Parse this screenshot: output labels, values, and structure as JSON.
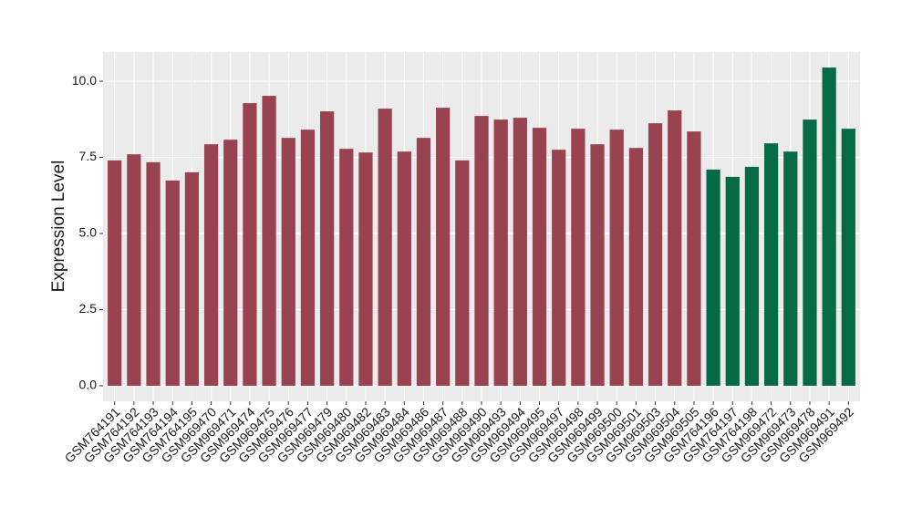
{
  "chart_data": {
    "type": "bar",
    "y_label": "Expression Level",
    "categories": [
      "GSM764191",
      "GSM764192",
      "GSM764193",
      "GSM764194",
      "GSM764195",
      "GSM969470",
      "GSM969471",
      "GSM969474",
      "GSM969475",
      "GSM969476",
      "GSM969477",
      "GSM969479",
      "GSM969480",
      "GSM969482",
      "GSM969483",
      "GSM969484",
      "GSM969486",
      "GSM969487",
      "GSM969488",
      "GSM969490",
      "GSM969493",
      "GSM969494",
      "GSM969495",
      "GSM969497",
      "GSM969498",
      "GSM969499",
      "GSM969500",
      "GSM969501",
      "GSM969503",
      "GSM969504",
      "GSM969505",
      "GSM764196",
      "GSM764197",
      "GSM764198",
      "GSM969472",
      "GSM969473",
      "GSM969478",
      "GSM969491",
      "GSM969492"
    ],
    "values": [
      7.4,
      7.6,
      7.34,
      6.74,
      7.01,
      7.93,
      8.08,
      9.28,
      9.52,
      8.14,
      8.41,
      9.01,
      7.78,
      7.66,
      9.1,
      7.69,
      8.14,
      9.13,
      7.4,
      8.86,
      8.74,
      8.8,
      8.47,
      7.75,
      8.44,
      7.93,
      8.41,
      7.81,
      8.62,
      9.04,
      8.35,
      7.1,
      6.86,
      7.19,
      7.96,
      7.69,
      8.74,
      10.45,
      8.44
    ],
    "colors": [
      "#9a4350",
      "#9a4350",
      "#9a4350",
      "#9a4350",
      "#9a4350",
      "#9a4350",
      "#9a4350",
      "#9a4350",
      "#9a4350",
      "#9a4350",
      "#9a4350",
      "#9a4350",
      "#9a4350",
      "#9a4350",
      "#9a4350",
      "#9a4350",
      "#9a4350",
      "#9a4350",
      "#9a4350",
      "#9a4350",
      "#9a4350",
      "#9a4350",
      "#9a4350",
      "#9a4350",
      "#9a4350",
      "#9a4350",
      "#9a4350",
      "#9a4350",
      "#9a4350",
      "#9a4350",
      "#9a4350",
      "#076a47",
      "#076a47",
      "#076a47",
      "#076a47",
      "#076a47",
      "#076a47",
      "#076a47",
      "#076a47"
    ],
    "ylim": [
      -0.51,
      10.96
    ],
    "yticks": [
      {
        "value": 0,
        "label": "0.0"
      },
      {
        "value": 2.5,
        "label": "2.5"
      },
      {
        "value": 5,
        "label": "5.0"
      },
      {
        "value": 7.5,
        "label": "7.5"
      },
      {
        "value": 10,
        "label": "10.0"
      }
    ],
    "grid": true
  }
}
